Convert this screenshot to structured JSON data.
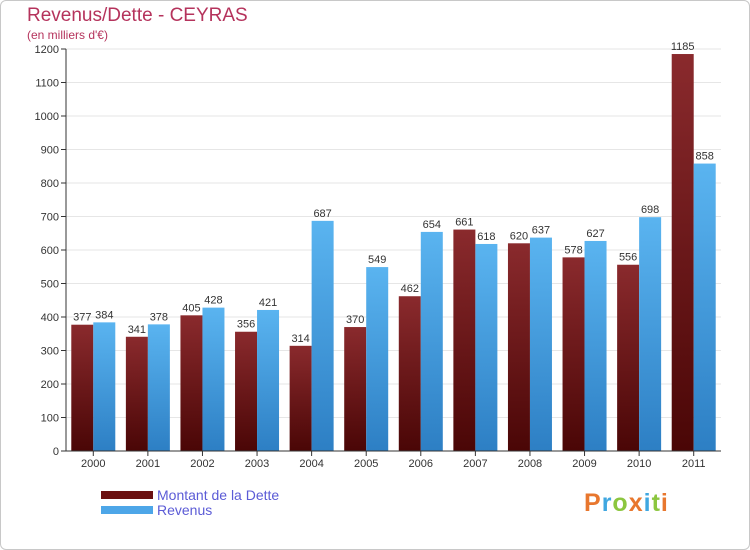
{
  "header": {
    "title": "Revenus/Dette - CEYRAS",
    "subtitle": "(en milliers d'€)"
  },
  "colors": {
    "debt": "#7a1c1f",
    "revenue": "#4da6e8",
    "axis": "#333333",
    "grid": "#e6e6e6",
    "title": "#b5335c"
  },
  "legend": {
    "items": [
      {
        "label": "Montant de la Dette",
        "color": "#6b1010"
      },
      {
        "label": "Revenus",
        "color": "#4da6e8"
      }
    ]
  },
  "logo": {
    "text": "Proxiti",
    "letter_colors": [
      "#e8772e",
      "#3fa7e0",
      "#8cc63f",
      "#e8772e",
      "#3fa7e0",
      "#8cc63f",
      "#e8772e"
    ]
  },
  "chart_data": {
    "type": "bar",
    "categories": [
      "2000",
      "2001",
      "2002",
      "2003",
      "2004",
      "2005",
      "2006",
      "2007",
      "2008",
      "2009",
      "2010",
      "2011"
    ],
    "series": [
      {
        "name": "Montant de la Dette",
        "values": [
          377,
          341,
          405,
          356,
          314,
          370,
          462,
          661,
          620,
          578,
          556,
          1185
        ]
      },
      {
        "name": "Revenus",
        "values": [
          384,
          378,
          428,
          421,
          687,
          549,
          654,
          618,
          637,
          627,
          698,
          858
        ]
      }
    ],
    "y_ticks": [
      0,
      100,
      200,
      300,
      400,
      500,
      600,
      700,
      800,
      900,
      1000,
      1100,
      1200
    ],
    "ylim": [
      0,
      1200
    ],
    "grid": true
  }
}
